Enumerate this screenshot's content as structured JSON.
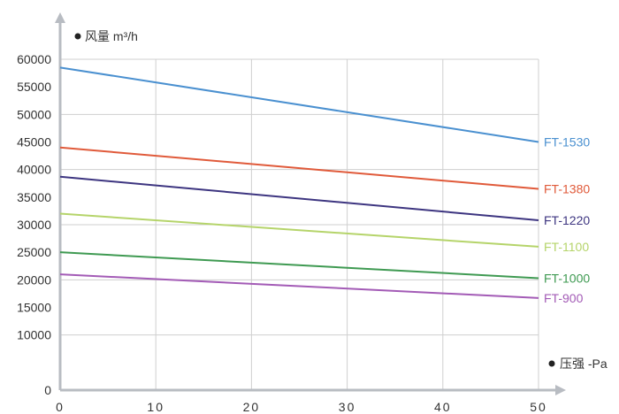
{
  "chart_data": {
    "type": "line",
    "xlabel": "压强  -Pa",
    "ylabel": "风量 m³/h",
    "xlim": [
      0,
      50
    ],
    "ylim": [
      0,
      60000
    ],
    "grid": true,
    "x_ticks": [
      "0",
      "10",
      "20",
      "30",
      "40",
      "50"
    ],
    "y_ticks": [
      "0",
      "10000",
      "15000",
      "20000",
      "25000",
      "30000",
      "35000",
      "40000",
      "45000",
      "50000",
      "55000",
      "60000"
    ],
    "x": [
      0,
      50
    ],
    "series": [
      {
        "name": "FT-1530",
        "color": "#4a90d0",
        "values": [
          58500,
          45000
        ]
      },
      {
        "name": "FT-1380",
        "color": "#e05a3a",
        "values": [
          44000,
          36500
        ]
      },
      {
        "name": "FT-1220",
        "color": "#3d3580",
        "values": [
          38700,
          30800
        ]
      },
      {
        "name": "FT-1100",
        "color": "#b5d46a",
        "values": [
          32000,
          26000
        ]
      },
      {
        "name": "FT-1000",
        "color": "#3f9a52",
        "values": [
          25000,
          20300
        ]
      },
      {
        "name": "FT-900",
        "color": "#a35bb6",
        "values": [
          21000,
          16700
        ]
      }
    ]
  }
}
